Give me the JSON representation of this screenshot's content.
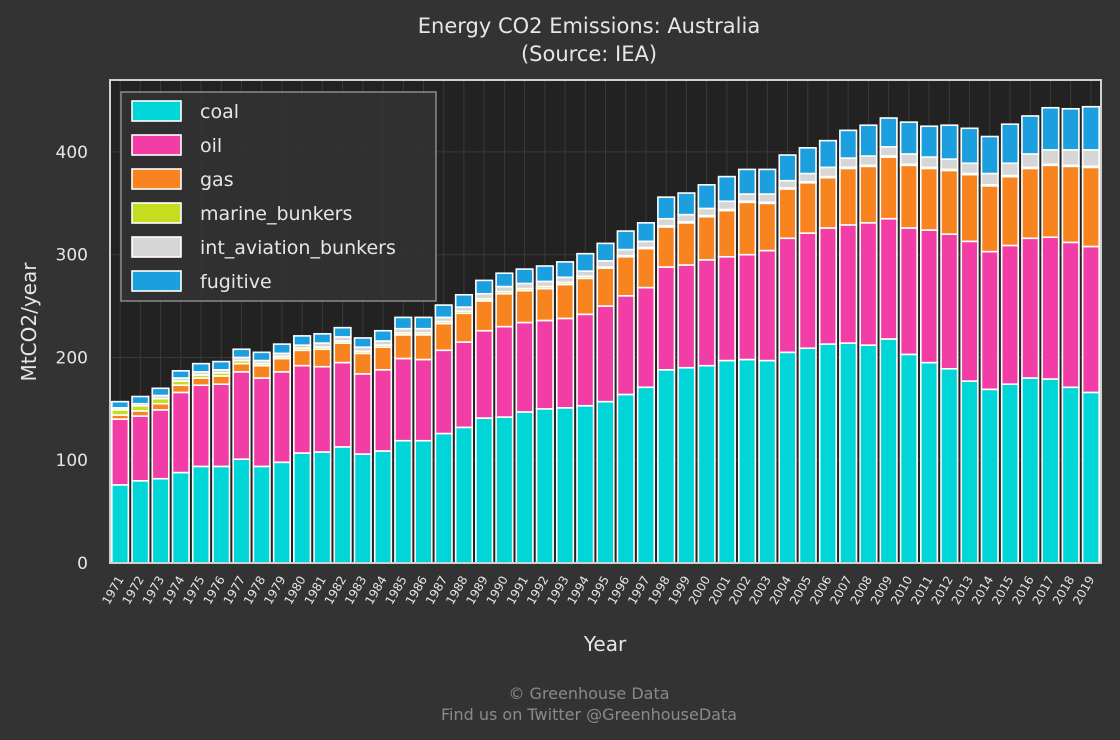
{
  "chart_data": {
    "type": "bar",
    "stacked": true,
    "title": "Energy CO2 Emissions: Australia",
    "subtitle": "(Source: IEA)",
    "xlabel": "Year",
    "ylabel": "MtCO2/year",
    "ylim": [
      0,
      470
    ],
    "yticks": [
      0,
      100,
      200,
      300,
      400
    ],
    "grid": true,
    "legend_position": "top-left",
    "categories": [
      "1971",
      "1972",
      "1973",
      "1974",
      "1975",
      "1976",
      "1977",
      "1978",
      "1979",
      "1980",
      "1981",
      "1982",
      "1983",
      "1984",
      "1985",
      "1986",
      "1987",
      "1988",
      "1989",
      "1990",
      "1991",
      "1992",
      "1993",
      "1994",
      "1995",
      "1996",
      "1997",
      "1998",
      "1999",
      "2000",
      "2001",
      "2002",
      "2003",
      "2004",
      "2005",
      "2006",
      "2007",
      "2008",
      "2009",
      "2010",
      "2011",
      "2012",
      "2013",
      "2014",
      "2015",
      "2016",
      "2017",
      "2018",
      "2019"
    ],
    "series": [
      {
        "name": "coal",
        "color": "#00d5d8",
        "values": [
          76,
          80,
          82,
          88,
          94,
          94,
          101,
          94,
          98,
          107,
          108,
          113,
          106,
          109,
          119,
          119,
          126,
          132,
          141,
          142,
          147,
          150,
          151,
          153,
          157,
          164,
          171,
          188,
          190,
          192,
          197,
          198,
          197,
          205,
          209,
          213,
          214,
          212,
          218,
          203,
          195,
          189,
          177,
          169,
          174,
          180,
          179,
          171,
          166
        ]
      },
      {
        "name": "oil",
        "color": "#f23da6",
        "values": [
          64,
          63,
          67,
          78,
          79,
          80,
          85,
          86,
          88,
          85,
          83,
          82,
          78,
          79,
          80,
          79,
          81,
          83,
          85,
          88,
          87,
          86,
          87,
          89,
          93,
          96,
          97,
          100,
          100,
          103,
          101,
          102,
          107,
          111,
          112,
          113,
          115,
          119,
          117,
          123,
          129,
          131,
          136,
          134,
          135,
          136,
          138,
          141,
          142
        ]
      },
      {
        "name": "gas",
        "color": "#f8841f",
        "values": [
          4,
          5,
          6,
          7,
          7,
          8,
          8,
          12,
          13,
          15,
          17,
          19,
          20,
          22,
          23,
          24,
          26,
          28,
          29,
          32,
          31,
          31,
          33,
          35,
          37,
          38,
          38,
          39,
          41,
          42,
          45,
          51,
          46,
          48,
          49,
          49,
          55,
          55,
          60,
          61,
          60,
          62,
          65,
          64,
          67,
          68,
          70,
          74,
          77
        ]
      },
      {
        "name": "marine_bunkers",
        "color": "#c6dc1f",
        "values": [
          5,
          5,
          5,
          4,
          3,
          3,
          3,
          2,
          2,
          2,
          2,
          2,
          2,
          2,
          2,
          2,
          2,
          2,
          2,
          2,
          2,
          2,
          2,
          2,
          1,
          1,
          1,
          1,
          1,
          1,
          1,
          1,
          1,
          1,
          1,
          1,
          1,
          1,
          1,
          1,
          1,
          1,
          1,
          1,
          1,
          1,
          1,
          1,
          1
        ]
      },
      {
        "name": "int_aviation_bunkers",
        "color": "#d6d6d6",
        "values": [
          2,
          2,
          3,
          3,
          3,
          3,
          3,
          3,
          3,
          3,
          4,
          4,
          4,
          4,
          4,
          4,
          4,
          4,
          5,
          5,
          5,
          5,
          5,
          5,
          6,
          6,
          6,
          7,
          7,
          7,
          8,
          7,
          8,
          7,
          8,
          9,
          9,
          9,
          9,
          10,
          10,
          10,
          10,
          11,
          12,
          13,
          14,
          15,
          16
        ]
      },
      {
        "name": "fugitive",
        "color": "#1c9fdf",
        "values": [
          6,
          7,
          7,
          7,
          8,
          8,
          8,
          8,
          9,
          9,
          9,
          9,
          9,
          10,
          11,
          11,
          12,
          12,
          13,
          13,
          14,
          15,
          15,
          17,
          17,
          18,
          18,
          21,
          21,
          23,
          24,
          24,
          24,
          25,
          25,
          26,
          27,
          30,
          28,
          31,
          30,
          33,
          34,
          36,
          38,
          37,
          41,
          40,
          42
        ]
      }
    ]
  },
  "footer": {
    "line1": "© Greenhouse Data",
    "line2": "Find us on Twitter @GreenhouseData"
  }
}
